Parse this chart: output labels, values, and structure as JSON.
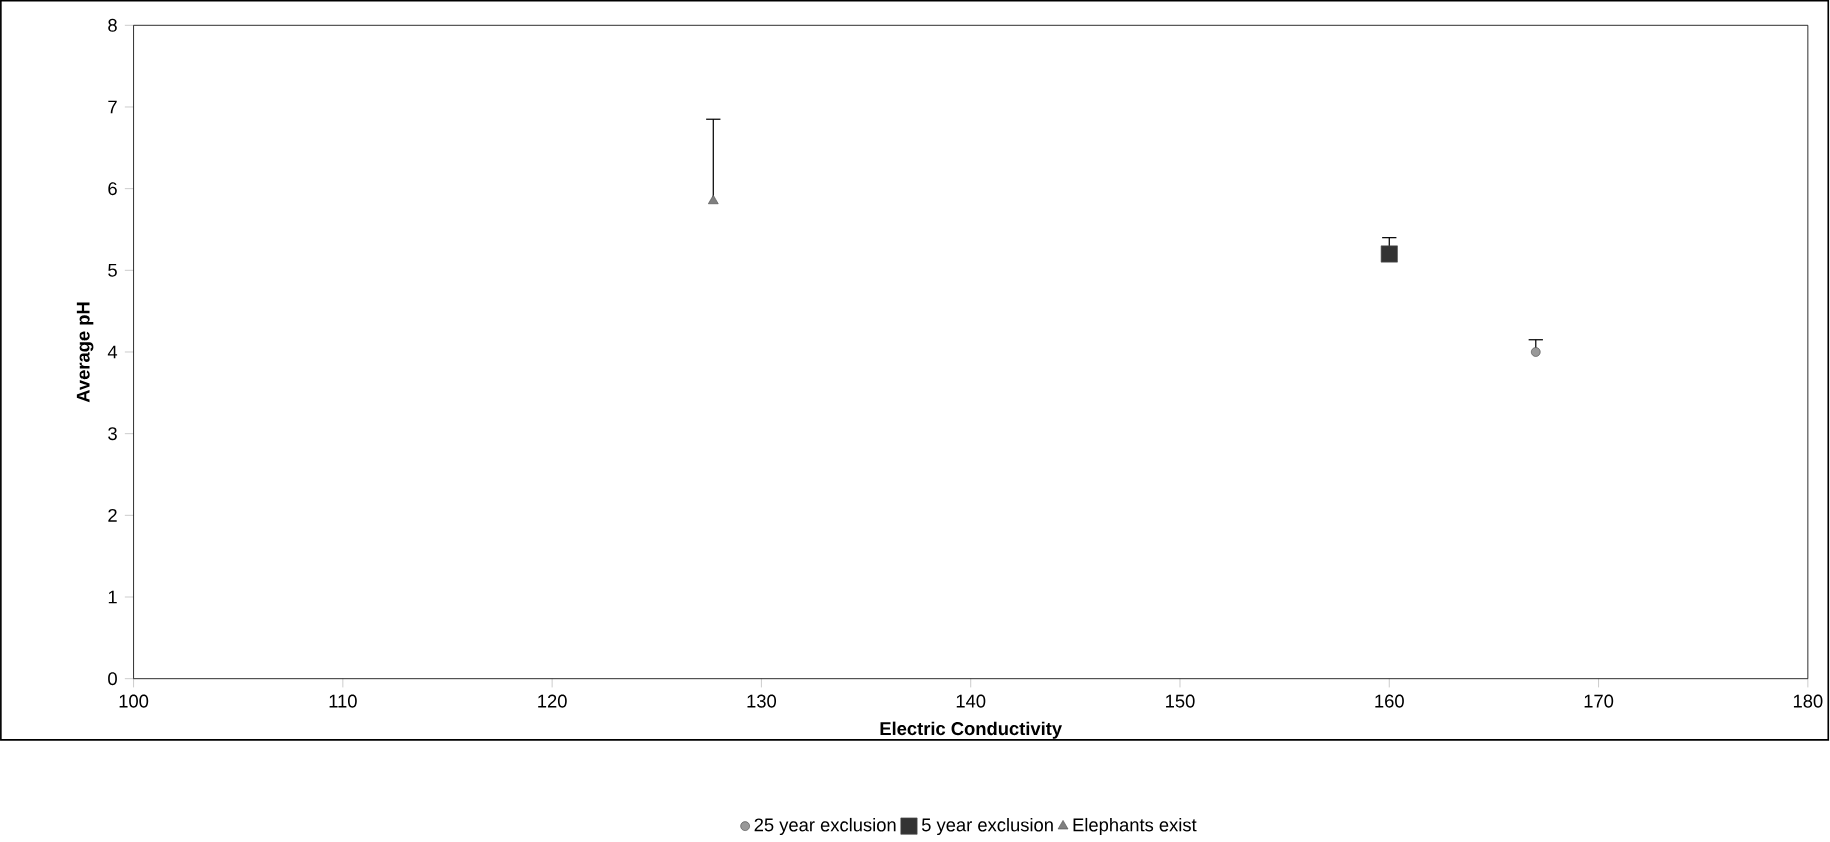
{
  "chart_data": {
    "type": "scatter",
    "xlabel": "Electric Conductivity",
    "ylabel": "Average pH",
    "xlim": [
      100,
      180
    ],
    "xticks": [
      100,
      110,
      120,
      130,
      140,
      150,
      160,
      170,
      180
    ],
    "ylim": [
      0,
      8
    ],
    "yticks": [
      0,
      1,
      2,
      3,
      4,
      5,
      6,
      7,
      8
    ],
    "grid": false,
    "legend": "bottom",
    "series": [
      {
        "name": "25 year exclusion",
        "color": "#999999",
        "marker": "circle",
        "x": [
          167
        ],
        "values": [
          4.0
        ],
        "errors": [
          [
            4.0,
            4.15
          ]
        ]
      },
      {
        "name": "5 year exclusion",
        "color": "#333333",
        "marker": "square",
        "x": [
          160
        ],
        "values": [
          5.2
        ],
        "errors": [
          [
            5.2,
            5.4
          ]
        ]
      },
      {
        "name": "Elephants exist",
        "color": "#808080",
        "marker": "triangle",
        "x": [
          127.7
        ],
        "values": [
          5.85
        ],
        "errors": [
          [
            5.85,
            6.85
          ]
        ]
      }
    ]
  }
}
